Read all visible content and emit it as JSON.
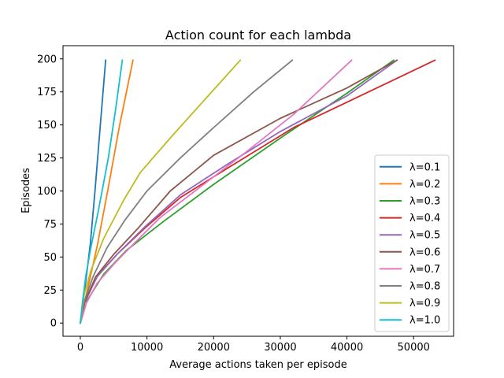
{
  "chart_data": {
    "type": "line",
    "title": "Action count for each lambda",
    "xlabel": "Average actions taken per episode",
    "ylabel": "Episodes",
    "xlim": [
      -2600,
      56000
    ],
    "ylim": [
      -10,
      210
    ],
    "xticks": [
      0,
      10000,
      20000,
      30000,
      40000,
      50000
    ],
    "yticks": [
      0,
      25,
      50,
      75,
      100,
      125,
      150,
      175,
      200
    ],
    "grid": false,
    "legend_position": "lower-right",
    "series": [
      {
        "name": "λ=0.1",
        "color": "#1f77b4",
        "points": [
          [
            0,
            0
          ],
          [
            400,
            15
          ],
          [
            900,
            35
          ],
          [
            1500,
            60
          ],
          [
            2200,
            100
          ],
          [
            3000,
            150
          ],
          [
            3800,
            199
          ]
        ]
      },
      {
        "name": "λ=0.2",
        "color": "#ff7f0e",
        "points": [
          [
            0,
            0
          ],
          [
            600,
            15
          ],
          [
            1500,
            35
          ],
          [
            2600,
            60
          ],
          [
            4100,
            100
          ],
          [
            5900,
            150
          ],
          [
            7900,
            199
          ]
        ]
      },
      {
        "name": "λ=0.3",
        "color": "#2ca02c",
        "points": [
          [
            0,
            0
          ],
          [
            1000,
            17
          ],
          [
            3500,
            37
          ],
          [
            6900,
            55
          ],
          [
            12500,
            77
          ],
          [
            20000,
            105
          ],
          [
            30000,
            140
          ],
          [
            40000,
            174
          ],
          [
            47000,
            199
          ]
        ]
      },
      {
        "name": "λ=0.4",
        "color": "#d62728",
        "points": [
          [
            0,
            0
          ],
          [
            700,
            17
          ],
          [
            2600,
            36
          ],
          [
            5500,
            52
          ],
          [
            9700,
            72
          ],
          [
            15000,
            95
          ],
          [
            22000,
            117
          ],
          [
            32000,
            148
          ],
          [
            42000,
            172
          ],
          [
            53200,
            199
          ]
        ]
      },
      {
        "name": "λ=0.5",
        "color": "#9467bd",
        "points": [
          [
            0,
            0
          ],
          [
            600,
            15
          ],
          [
            2500,
            35
          ],
          [
            5500,
            52
          ],
          [
            9500,
            72
          ],
          [
            15000,
            97
          ],
          [
            22000,
            120
          ],
          [
            30000,
            145
          ],
          [
            40000,
            172
          ],
          [
            47500,
            199
          ]
        ]
      },
      {
        "name": "λ=0.6",
        "color": "#8c564b",
        "points": [
          [
            0,
            0
          ],
          [
            600,
            15
          ],
          [
            2300,
            35
          ],
          [
            5000,
            52
          ],
          [
            8700,
            72
          ],
          [
            13500,
            100
          ],
          [
            20000,
            127
          ],
          [
            30000,
            155
          ],
          [
            40000,
            178
          ],
          [
            47500,
            199
          ]
        ]
      },
      {
        "name": "λ=0.7",
        "color": "#e377c2",
        "points": [
          [
            0,
            0
          ],
          [
            900,
            15
          ],
          [
            2500,
            30
          ],
          [
            5100,
            45
          ],
          [
            8000,
            60
          ],
          [
            12000,
            80
          ],
          [
            18000,
            103
          ],
          [
            25000,
            130
          ],
          [
            32000,
            158
          ],
          [
            40700,
            199
          ]
        ]
      },
      {
        "name": "λ=0.8",
        "color": "#7f7f7f",
        "points": [
          [
            0,
            0
          ],
          [
            500,
            15
          ],
          [
            1900,
            35
          ],
          [
            4000,
            57
          ],
          [
            6700,
            78
          ],
          [
            10000,
            100
          ],
          [
            15000,
            125
          ],
          [
            20000,
            148
          ],
          [
            26000,
            175
          ],
          [
            31800,
            199
          ]
        ]
      },
      {
        "name": "λ=0.9",
        "color": "#bcbd22",
        "points": [
          [
            0,
            0
          ],
          [
            500,
            20
          ],
          [
            1600,
            40
          ],
          [
            3500,
            64
          ],
          [
            6500,
            93
          ],
          [
            9000,
            114
          ],
          [
            14000,
            143
          ],
          [
            19000,
            171
          ],
          [
            24000,
            199
          ]
        ]
      },
      {
        "name": "λ=1.0",
        "color": "#17becf",
        "points": [
          [
            0,
            0
          ],
          [
            300,
            15
          ],
          [
            800,
            35
          ],
          [
            1500,
            55
          ],
          [
            2700,
            85
          ],
          [
            4200,
            125
          ],
          [
            5300,
            162
          ],
          [
            6300,
            199
          ]
        ]
      }
    ]
  }
}
